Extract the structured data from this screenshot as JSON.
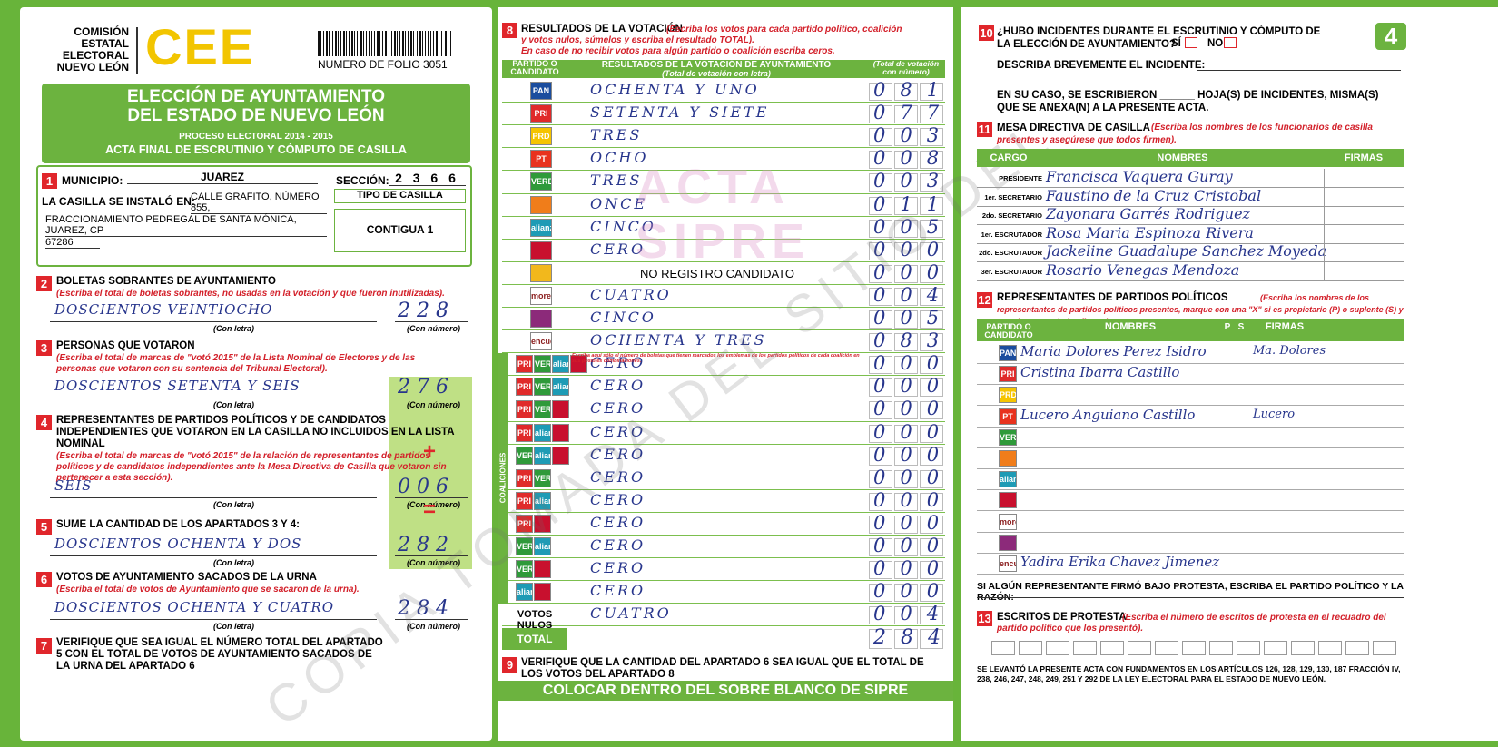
{
  "header": {
    "commission": [
      "COMISIÓN",
      "ESTATAL",
      "ELECTORAL",
      "NUEVO LEÓN"
    ],
    "logo": "CEE",
    "folio": "NUMERO DE FOLIO 3051",
    "title": [
      "ELECCIÓN DE AYUNTAMIENTO",
      "DEL ESTADO DE NUEVO LEÓN"
    ],
    "process": "PROCESO ELECTORAL 2014 - 2015",
    "subtitle": "ACTA FINAL DE ESCRUTINIO Y CÓMPUTO DE CASILLA"
  },
  "section1": {
    "number": "1",
    "municipio_label": "MUNICIPIO:",
    "municipio": "JUAREZ",
    "seccion_label": "SECCIÓN:",
    "seccion": "2 3 6 6",
    "casilla_label": "LA CASILLA SE INSTALÓ EN:",
    "address": [
      "CALLE GRAFITO, NÚMERO 855,",
      "FRACCIONAMIENTO PEDREGAL DE SANTA MÓNICA, JUAREZ, CP",
      "67286"
    ],
    "tipo_label": "TIPO DE CASILLA",
    "tipo": "CONTIGUA 1"
  },
  "left_sections": [
    {
      "number": "2",
      "title": "BOLETAS SOBRANTES DE AYUNTAMIENTO",
      "note": "(Escriba el total de boletas sobrantes, no usadas en la votación y que fueron inutilizadas).",
      "words": "DOSCIENTOS VEINTIOCHO",
      "digits": "228",
      "caption_words": "(Con letra)",
      "caption_digits": "(Con número)"
    },
    {
      "number": "3",
      "title": "PERSONAS QUE VOTARON",
      "note": "(Escriba el total de marcas de \"votó 2015\" de la Lista Nominal de Electores y de las personas que votaron con su sentencia del Tribunal Electoral).",
      "words": "DOSCIENTOS SETENTA Y SEIS",
      "digits": "276",
      "caption_words": "(Con letra)",
      "caption_digits": "(Con número)"
    },
    {
      "number": "4",
      "title": "REPRESENTANTES DE PARTIDOS POLÍTICOS Y DE CANDIDATOS INDEPENDIENTES QUE VOTARON EN LA CASILLA NO INCLUIDOS EN LA LISTA NOMINAL",
      "note": "(Escriba el total de marcas de \"votó 2015\" de la relación de representantes de partidos políticos y de candidatos independientes ante la Mesa Directiva de Casilla que votaron sin pertenecer a esta sección).",
      "words": "SEIS",
      "digits": "006",
      "sign": "+",
      "caption_words": "(Con letra)",
      "caption_digits": "(Con número)"
    },
    {
      "number": "5",
      "title": "SUME LA CANTIDAD DE LOS APARTADOS 3 Y 4:",
      "words": "DOSCIENTOS OCHENTA Y DOS",
      "digits": "282",
      "sign": "=",
      "caption_words": "(Con letra)",
      "caption_digits": "(Con número)"
    },
    {
      "number": "6",
      "title": "VOTOS DE AYUNTAMIENTO SACADOS DE LA URNA",
      "note": "(Escriba el total de votos de Ayuntamiento que se sacaron de la urna).",
      "words": "DOSCIENTOS OCHENTA Y CUATRO",
      "digits": "284",
      "caption_words": "(Con letra)",
      "caption_digits": "(Con número)"
    }
  ],
  "section7": {
    "number": "7",
    "text": "VERIFIQUE QUE SEA IGUAL EL NÚMERO TOTAL DEL APARTADO 5 CON EL TOTAL DE VOTOS DE AYUNTAMIENTO SACADOS DE LA URNA DEL APARTADO 6"
  },
  "section8": {
    "number": "8",
    "title": "RESULTADOS DE LA VOTACIÓN",
    "note": "(Escriba los votos para cada partido político, coalición y votos nulos, súmelos y escriba el resultado TOTAL).",
    "note2": "En caso de no recibir votos para algún partido o coalición escriba ceros.",
    "col_party": "PARTIDO O CANDIDATO",
    "col_text": "RESULTADOS DE LA VOTACIÓN DE AYUNTAMIENTO",
    "col_text_sub": "(Total de votación con letra)",
    "col_num": "(Total de votación con número)",
    "coalition_label": "COALICIONES",
    "coalition_note": "Escriba aquí sólo el número de boletas que tienen marcados los emblemas de los partidos políticos de cada coalición en sus posibles combinaciones.",
    "rows": [
      {
        "logos": [
          {
            "text": "PAN",
            "color": "#1b4d9e"
          }
        ],
        "words": "OCHENTA Y UNO",
        "digits": "081"
      },
      {
        "logos": [
          {
            "text": "PRI",
            "color": "#e02a2a"
          }
        ],
        "words": "SETENTA Y SIETE",
        "digits": "077"
      },
      {
        "logos": [
          {
            "text": "PRD",
            "color": "#f5c400"
          }
        ],
        "words": "TRES",
        "digits": "003"
      },
      {
        "logos": [
          {
            "text": "PT",
            "color": "#e8321e"
          }
        ],
        "words": "OCHO",
        "digits": "008"
      },
      {
        "logos": [
          {
            "text": "VERDE",
            "color": "#2f9a3a"
          }
        ],
        "words": "TRES",
        "digits": "003"
      },
      {
        "logos": [
          {
            "color": "#f07d1a"
          }
        ],
        "words": "ONCE",
        "digits": "011"
      },
      {
        "logos": [
          {
            "text": "alianza",
            "color": "#1e9bb5"
          }
        ],
        "words": "CINCO",
        "digits": "005"
      },
      {
        "logos": [
          {
            "color": "#c8102e"
          }
        ],
        "words": "CERO",
        "digits": "000"
      },
      {
        "logos": [
          {
            "color": "#f2b81c"
          }
        ],
        "printed": "NO REGISTRO CANDIDATO",
        "digits": "000"
      },
      {
        "logos": [
          {
            "text": "morena",
            "color": "#ffffff"
          }
        ],
        "words": "CUATRO",
        "digits": "004"
      },
      {
        "logos": [
          {
            "color": "#8c2a7a"
          }
        ],
        "words": "CINCO",
        "digits": "005"
      },
      {
        "logos": [
          {
            "text": "encuentro social",
            "color": "#ffffff"
          }
        ],
        "words": "OCHENTA Y TRES",
        "digits": "083"
      },
      {
        "logos": [
          {
            "text": "PRI",
            "color": "#e02a2a"
          },
          {
            "text": "VERDE",
            "color": "#2f9a3a"
          },
          {
            "text": "alianza",
            "color": "#1e9bb5"
          },
          {
            "color": "#c8102e"
          }
        ],
        "words": "CERO",
        "digits": "000"
      },
      {
        "logos": [
          {
            "text": "PRI",
            "color": "#e02a2a"
          },
          {
            "text": "VERDE",
            "color": "#2f9a3a"
          },
          {
            "text": "alianza",
            "color": "#1e9bb5"
          }
        ],
        "words": "CERO",
        "digits": "000"
      },
      {
        "logos": [
          {
            "text": "PRI",
            "color": "#e02a2a"
          },
          {
            "text": "VERDE",
            "color": "#2f9a3a"
          },
          {
            "color": "#c8102e"
          }
        ],
        "words": "CERO",
        "digits": "000"
      },
      {
        "logos": [
          {
            "text": "PRI",
            "color": "#e02a2a"
          },
          {
            "text": "alianza",
            "color": "#1e9bb5"
          },
          {
            "color": "#c8102e"
          }
        ],
        "words": "CERO",
        "digits": "000"
      },
      {
        "logos": [
          {
            "text": "VERDE",
            "color": "#2f9a3a"
          },
          {
            "text": "alianza",
            "color": "#1e9bb5"
          },
          {
            "color": "#c8102e"
          }
        ],
        "words": "CERO",
        "digits": "000"
      },
      {
        "logos": [
          {
            "text": "PRI",
            "color": "#e02a2a"
          },
          {
            "text": "VERDE",
            "color": "#2f9a3a"
          }
        ],
        "words": "CERO",
        "digits": "000"
      },
      {
        "logos": [
          {
            "text": "PRI",
            "color": "#e02a2a"
          },
          {
            "text": "alianza",
            "color": "#1e9bb5"
          }
        ],
        "words": "CERO",
        "digits": "000"
      },
      {
        "logos": [
          {
            "text": "PRI",
            "color": "#e02a2a"
          },
          {
            "color": "#c8102e"
          }
        ],
        "words": "CERO",
        "digits": "000"
      },
      {
        "logos": [
          {
            "text": "VERDE",
            "color": "#2f9a3a"
          },
          {
            "text": "alianza",
            "color": "#1e9bb5"
          }
        ],
        "words": "CERO",
        "digits": "000"
      },
      {
        "logos": [
          {
            "text": "VERDE",
            "color": "#2f9a3a"
          },
          {
            "color": "#c8102e"
          }
        ],
        "words": "CERO",
        "digits": "000"
      },
      {
        "logos": [
          {
            "text": "alianza",
            "color": "#1e9bb5"
          },
          {
            "color": "#c8102e"
          }
        ],
        "words": "CERO",
        "digits": "000"
      }
    ],
    "nulos_label": "VOTOS NULOS",
    "nulos_words": "CUATRO",
    "nulos_digits": "004",
    "total_label": "TOTAL",
    "total_digits": "284"
  },
  "section9": {
    "number": "9",
    "text": "VERIFIQUE QUE LA CANTIDAD DEL APARTADO 6 SEA IGUAL QUE EL TOTAL DE LOS VOTOS DEL APARTADO 8"
  },
  "banner": "COLOCAR DENTRO DEL SOBRE BLANCO DE SIPRE",
  "section10": {
    "number": "10",
    "question": "¿HUBO INCIDENTES DURANTE EL ESCRUTINIO Y CÓMPUTO DE LA ELECCIÓN DE AYUNTAMIENTO?",
    "yes": "SÍ",
    "no": "NO",
    "describe": "DESCRIBA BREVEMENTE EL INCIDENTE:",
    "sheets": "EN SU CASO, SE ESCRIBIERON ______ HOJA(S) DE INCIDENTES, MISMA(S) QUE SE ANEXA(N) A LA PRESENTE ACTA."
  },
  "page_number": "4",
  "section11": {
    "number": "11",
    "title": "MESA DIRECTIVA DE CASILLA",
    "note": "(Escriba los nombres de los funcionarios de casilla presentes y asegúrese que todos firmen).",
    "headers": [
      "CARGO",
      "NOMBRES",
      "FIRMAS"
    ],
    "rows": [
      {
        "cargo": "PRESIDENTE",
        "name": "Francisca Vaquera Guray"
      },
      {
        "cargo": "1er. SECRETARIO",
        "name": "Faustino de la Cruz Cristobal"
      },
      {
        "cargo": "2do. SECRETARIO",
        "name": "Zayonara Garrés Rodriguez"
      },
      {
        "cargo": "1er. ESCRUTADOR",
        "name": "Rosa Maria Espinoza Rivera"
      },
      {
        "cargo": "2do. ESCRUTADOR",
        "name": "Jackeline Guadalupe Sanchez Moyeda"
      },
      {
        "cargo": "3er. ESCRUTADOR",
        "name": "Rosario Venegas Mendoza"
      }
    ]
  },
  "section12": {
    "number": "12",
    "title": "REPRESENTANTES DE PARTIDOS POLÍTICOS",
    "note": "(Escriba los nombres de los representantes de partidos políticos presentes, marque con una \"X\" si es propietario (P) o suplente (S) y asegúrese que todos firmen).",
    "headers": [
      "PARTIDO O CANDIDATO",
      "NOMBRES",
      "P",
      "S",
      "FIRMAS"
    ],
    "rows": [
      {
        "logo": {
          "text": "PAN",
          "color": "#1b4d9e"
        },
        "name": "Maria Dolores Perez Isidro",
        "signature": "Ma. Dolores"
      },
      {
        "logo": {
          "text": "PRI",
          "color": "#e02a2a"
        },
        "name": "Cristina Ibarra Castillo"
      },
      {
        "logo": {
          "text": "PRD",
          "color": "#f5c400"
        }
      },
      {
        "logo": {
          "text": "PT",
          "color": "#e8321e"
        },
        "name": "Lucero Anguiano Castillo",
        "signature": "Lucero"
      },
      {
        "logo": {
          "text": "VERDE",
          "color": "#2f9a3a"
        }
      },
      {
        "logo": {
          "color": "#f07d1a"
        }
      },
      {
        "logo": {
          "text": "alianza",
          "color": "#1e9bb5"
        }
      },
      {
        "logo": {
          "color": "#c8102e"
        }
      },
      {
        "logo": {
          "text": "morena",
          "color": "#ffffff"
        }
      },
      {
        "logo": {
          "color": "#8c2a7a"
        }
      },
      {
        "logo": {
          "text": "encuentro social",
          "color": "#ffffff"
        },
        "name": "Yadira Erika Chavez Jimenez"
      }
    ]
  },
  "protest_note": "SI ALGÚN REPRESENTANTE FIRMÓ BAJO PROTESTA, ESCRIBA EL PARTIDO POLÍTICO Y LA RAZÓN:",
  "section13": {
    "number": "13",
    "title": "ESCRITOS DE PROTESTA",
    "note": "(Escriba el número de escritos de protesta en el recuadro del partido político que los presentó).",
    "legal": "SE LEVANTÓ LA PRESENTE ACTA CON FUNDAMENTOS EN LOS ARTÍCULOS 126, 128, 129, 130, 187 FRACCIÓN IV, 238, 246, 247, 248, 249, 251 Y 292 DE LA LEY ELECTORAL PARA EL ESTADO DE NUEVO LEÓN."
  },
  "watermarks": [
    "ACTA",
    "SIPRE",
    "COPIA TOMADA DEL SITIO DEL"
  ]
}
